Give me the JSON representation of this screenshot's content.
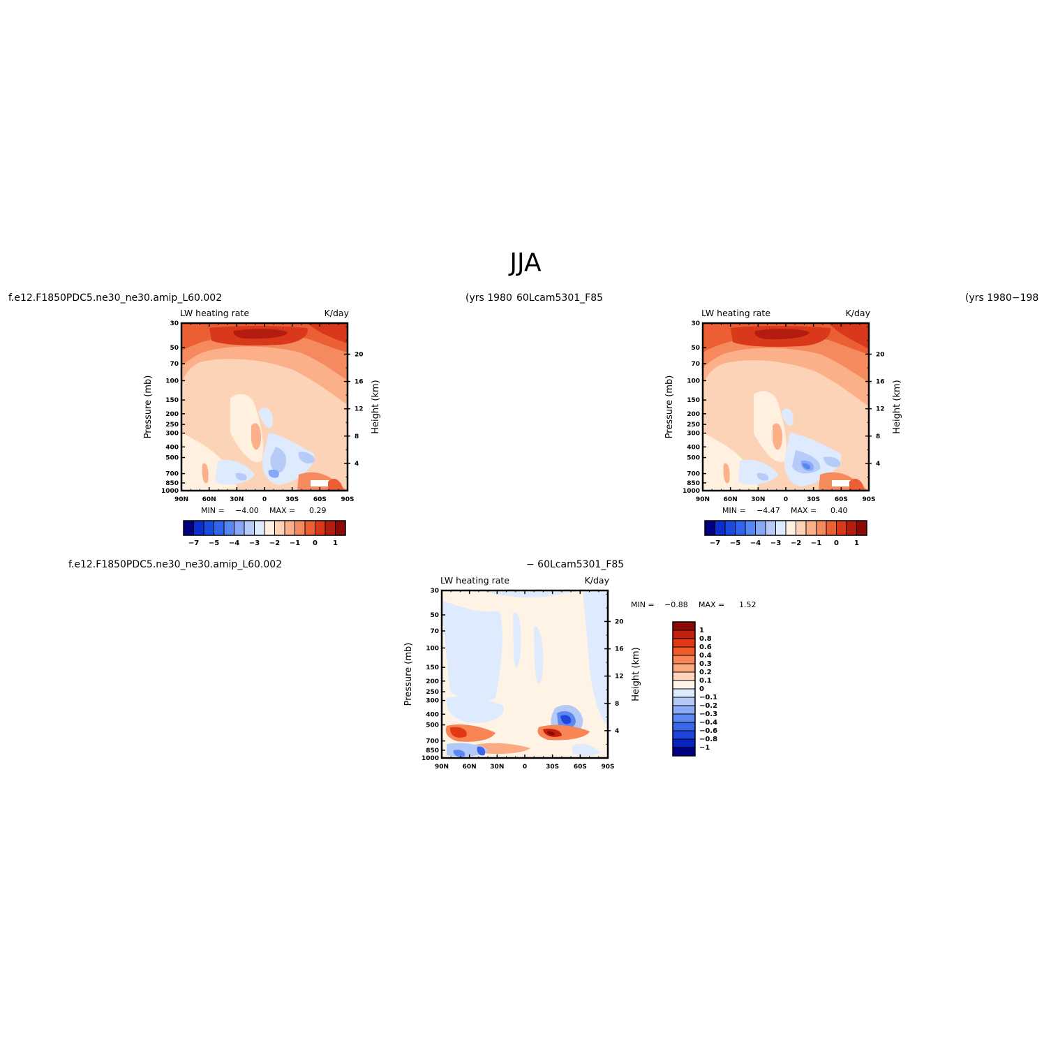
{
  "page": {
    "title": "JJA",
    "case_left_top": "f.e12.F1850PDC5.ne30_ne30.amip_L60.002",
    "case_left_years": "(yrs 1980",
    "case_right_top": "60Lcam5301_F85",
    "case_right_years": "(yrs 1980−198",
    "case_diff_left": "f.e12.F1850PDC5.ne30_ne30.amip_L60.002",
    "case_diff_right": "− 60Lcam5301_F85"
  },
  "colors": {
    "abs_scale": [
      "#000080",
      "#0c2ecc",
      "#1a4bdd",
      "#2f64ec",
      "#5686f2",
      "#88a8f5",
      "#b6cbf8",
      "#deeafd",
      "#fff0e0",
      "#fdd3b8",
      "#fbb08a",
      "#f68a5f",
      "#ec5f35",
      "#d9391a",
      "#b31c0e",
      "#8c0a05"
    ],
    "diff_scale": [
      "#8c0a05",
      "#c41e0e",
      "#e33816",
      "#f05a2a",
      "#f78555",
      "#fbaa82",
      "#fed4bb",
      "#fff3e6",
      "#deeafd",
      "#b3c9f8",
      "#8aabf5",
      "#5e88f1",
      "#3a66ea",
      "#1f45dc",
      "#0a23be",
      "#000080"
    ]
  },
  "chart_data": [
    {
      "type": "heatmap",
      "panel": "top-left",
      "subtitle_left": "LW heating rate",
      "subtitle_right": "K/day",
      "ylabel": "Pressure (mb)",
      "ylabel_right": "Height (km)",
      "x_ticks": [
        "90N",
        "60N",
        "30N",
        "0",
        "30S",
        "60S",
        "90S"
      ],
      "y_ticks": [
        "30",
        "50",
        "70",
        "100",
        "150",
        "200",
        "250",
        "300",
        "400",
        "500",
        "700",
        "850",
        "1000"
      ],
      "y_right_ticks": [
        "20",
        "16",
        "12",
        "8",
        "4"
      ],
      "min_label": "MIN =",
      "min_value": "−4.00",
      "max_label": "MAX =",
      "max_value": "0.29",
      "colorbar_labels": [
        "−7",
        "−5",
        "−4",
        "−3",
        "−2",
        "−1",
        "0",
        "1"
      ]
    },
    {
      "type": "heatmap",
      "panel": "top-right",
      "subtitle_left": "LW heating rate",
      "subtitle_right": "K/day",
      "ylabel": "Pressure (mb)",
      "ylabel_right": "Height (km)",
      "x_ticks": [
        "90N",
        "60N",
        "30N",
        "0",
        "30S",
        "60S",
        "90S"
      ],
      "y_ticks": [
        "30",
        "50",
        "70",
        "100",
        "150",
        "200",
        "250",
        "300",
        "400",
        "500",
        "700",
        "850",
        "1000"
      ],
      "y_right_ticks": [
        "20",
        "16",
        "12",
        "8",
        "4"
      ],
      "min_label": "MIN =",
      "min_value": "−4.47",
      "max_label": "MAX =",
      "max_value": "0.40",
      "colorbar_labels": [
        "−7",
        "−5",
        "−4",
        "−3",
        "−2",
        "−1",
        "0",
        "1"
      ]
    },
    {
      "type": "heatmap",
      "panel": "bottom-difference",
      "subtitle_left": "LW heating rate",
      "subtitle_right": "K/day",
      "ylabel": "Pressure (mb)",
      "ylabel_right": "Height (km)",
      "x_ticks": [
        "90N",
        "60N",
        "30N",
        "0",
        "30S",
        "60S",
        "90S"
      ],
      "y_ticks": [
        "30",
        "50",
        "70",
        "100",
        "150",
        "200",
        "250",
        "300",
        "400",
        "500",
        "700",
        "850",
        "1000"
      ],
      "y_right_ticks": [
        "20",
        "16",
        "12",
        "8",
        "4"
      ],
      "min_label": "MIN =",
      "min_value": "−0.88",
      "max_label": "MAX =",
      "max_value": "1.52",
      "colorbar_labels": [
        "1",
        "0.8",
        "0.6",
        "0.4",
        "0.3",
        "0.2",
        "0.1",
        "0",
        "−0.1",
        "−0.2",
        "−0.3",
        "−0.4",
        "−0.6",
        "−0.8",
        "−1"
      ]
    }
  ]
}
